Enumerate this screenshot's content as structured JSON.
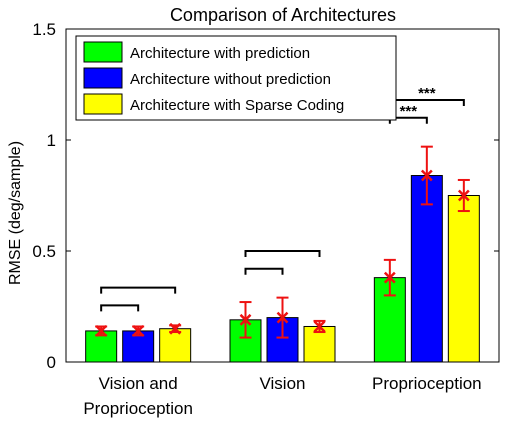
{
  "chart_data": {
    "type": "bar",
    "title": "Comparison of Architectures",
    "ylabel": "RMSE (deg/sample)",
    "xlabel": "",
    "ylim": [
      0,
      1.5
    ],
    "yticks": [
      "0",
      "0.5",
      "1",
      "1.5"
    ],
    "categories": [
      [
        "Vision and",
        "Proprioception"
      ],
      [
        "Vision"
      ],
      [
        "Proprioception"
      ]
    ],
    "series": [
      {
        "name": "Architecture with prediction",
        "color": "#00ff00",
        "values": [
          0.14,
          0.19,
          0.38
        ],
        "err": [
          0.02,
          0.08,
          0.08
        ],
        "marker": [
          0.14,
          0.19,
          0.38
        ]
      },
      {
        "name": "Architecture without prediction",
        "color": "#0000ff",
        "values": [
          0.14,
          0.2,
          0.84
        ],
        "err": [
          0.02,
          0.09,
          0.13
        ],
        "marker": [
          0.14,
          0.2,
          0.84
        ]
      },
      {
        "name": "Architecture with Sparse Coding",
        "color": "#ffff00",
        "values": [
          0.15,
          0.16,
          0.75
        ],
        "err": [
          0.015,
          0.025,
          0.07
        ],
        "marker": [
          0.15,
          0.16,
          0.75
        ]
      }
    ],
    "significance": [
      {
        "group": 0,
        "from": 0,
        "to": 1,
        "label": ""
      },
      {
        "group": 0,
        "from": 0,
        "to": 2,
        "label": ""
      },
      {
        "group": 1,
        "from": 0,
        "to": 1,
        "label": ""
      },
      {
        "group": 1,
        "from": 0,
        "to": 2,
        "label": ""
      },
      {
        "group": 2,
        "from": 0,
        "to": 1,
        "label": "***"
      },
      {
        "group": 2,
        "from": 0,
        "to": 2,
        "label": "***"
      }
    ],
    "legend_position": "top-left",
    "error_color": "#ee1111",
    "grid": false
  }
}
